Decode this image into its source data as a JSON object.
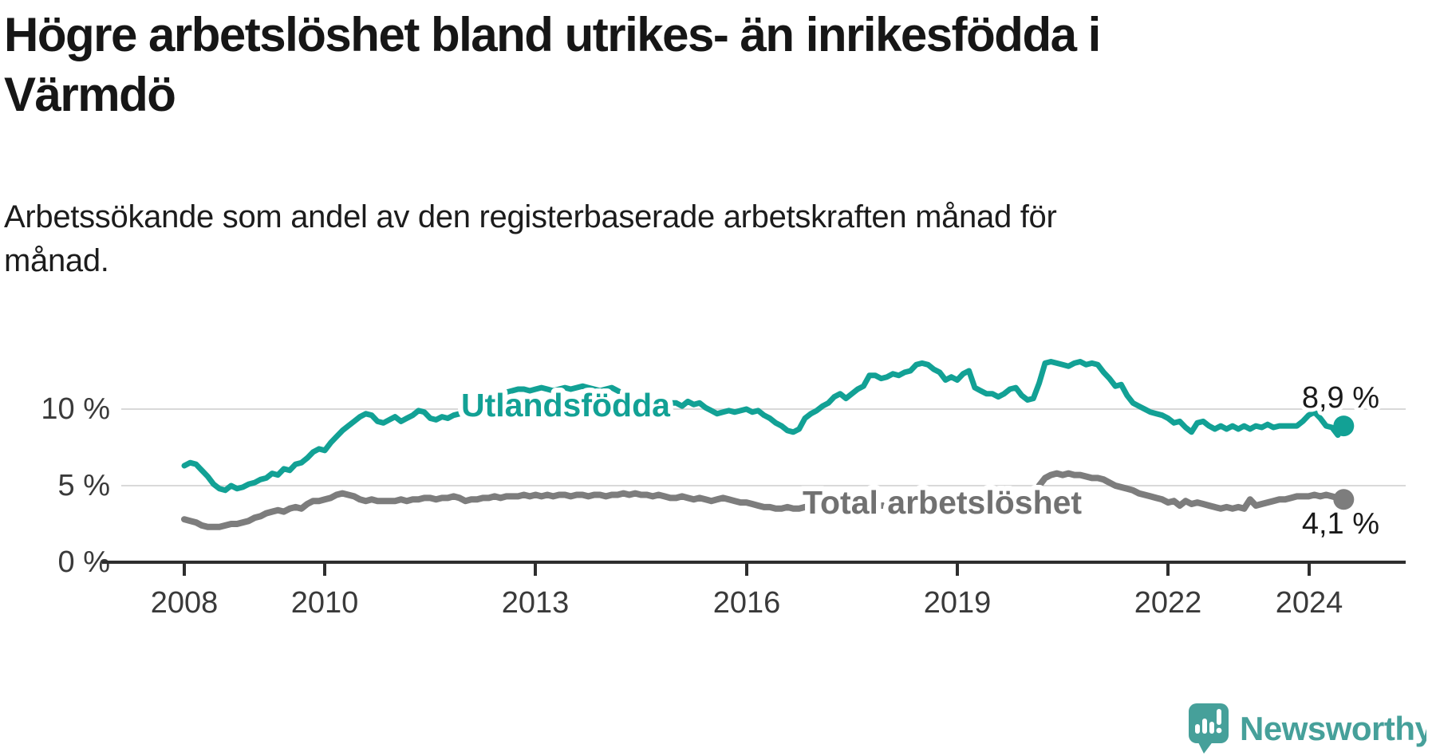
{
  "header": {
    "title_lines": [
      "Högre arbetslöshet bland utrikes- än inrikesfödda i",
      "Värmdö"
    ],
    "subtitle_lines": [
      "Arbetssökande som andel av den registerbaserade arbetskraften månad för",
      "månad."
    ]
  },
  "chart_data": {
    "type": "line",
    "unit": "percent",
    "frequency": "monthly",
    "x_start": "2008-01",
    "x_end": "2024-07",
    "grid": "horizontal",
    "ylim": [
      0,
      14
    ],
    "x_tick_labels": [
      "2008",
      "2010",
      "2013",
      "2016",
      "2019",
      "2022",
      "2024"
    ],
    "x_tick_years": [
      2008,
      2010,
      2013,
      2016,
      2019,
      2022,
      2024
    ],
    "y_tick_labels": [
      "0 %",
      "5 %",
      "10 %"
    ],
    "y_tick_values": [
      0,
      5,
      10
    ],
    "series": [
      {
        "name": "Utlandsfödda",
        "color": "#12a195",
        "end_label": "8,9 %",
        "end_value": 8.9,
        "values": [
          6.3,
          6.5,
          6.4,
          6.0,
          5.6,
          5.1,
          4.8,
          4.7,
          5.0,
          4.8,
          4.9,
          5.1,
          5.2,
          5.4,
          5.5,
          5.8,
          5.7,
          6.1,
          6.0,
          6.4,
          6.5,
          6.8,
          7.2,
          7.4,
          7.3,
          7.8,
          8.2,
          8.6,
          8.9,
          9.2,
          9.5,
          9.7,
          9.6,
          9.2,
          9.1,
          9.3,
          9.5,
          9.2,
          9.4,
          9.6,
          9.9,
          9.8,
          9.4,
          9.3,
          9.5,
          9.4,
          9.6,
          9.7,
          9.8,
          10.0,
          10.3,
          10.5,
          10.7,
          10.9,
          11.0,
          11.1,
          11.2,
          11.3,
          11.3,
          11.2,
          11.3,
          11.4,
          11.3,
          11.2,
          11.3,
          11.4,
          11.3,
          11.4,
          11.5,
          11.4,
          11.3,
          11.2,
          11.3,
          11.4,
          11.2,
          11.0,
          10.8,
          10.6,
          10.5,
          10.4,
          10.3,
          10.2,
          10.3,
          10.4,
          10.4,
          10.2,
          10.5,
          10.3,
          10.4,
          10.1,
          9.9,
          9.7,
          9.8,
          9.9,
          9.8,
          9.9,
          10.0,
          9.8,
          9.9,
          9.6,
          9.4,
          9.1,
          8.9,
          8.6,
          8.5,
          8.7,
          9.4,
          9.7,
          9.9,
          10.2,
          10.4,
          10.8,
          11.0,
          10.7,
          11.0,
          11.3,
          11.5,
          12.2,
          12.2,
          12.0,
          12.1,
          12.3,
          12.2,
          12.4,
          12.5,
          12.9,
          13.0,
          12.9,
          12.6,
          12.4,
          11.9,
          12.1,
          11.9,
          12.3,
          12.5,
          11.4,
          11.2,
          11.0,
          11.0,
          10.8,
          11.0,
          11.3,
          11.4,
          10.9,
          10.6,
          10.7,
          11.7,
          13.0,
          13.1,
          13.0,
          12.9,
          12.8,
          13.0,
          13.1,
          12.9,
          13.0,
          12.9,
          12.4,
          12.0,
          11.5,
          11.6,
          10.9,
          10.4,
          10.2,
          10.0,
          9.8,
          9.7,
          9.6,
          9.4,
          9.1,
          9.2,
          8.8,
          8.5,
          9.1,
          9.2,
          8.9,
          8.7,
          8.9,
          8.7,
          8.9,
          8.7,
          8.9,
          8.7,
          8.9,
          8.8,
          9.0,
          8.8,
          8.9,
          8.9,
          8.9,
          8.9,
          9.2,
          9.6,
          9.8,
          9.4,
          8.9,
          8.8,
          8.3,
          8.9
        ]
      },
      {
        "name": "Total arbetslöshet",
        "color": "#7d7d7d",
        "end_label": "4,1 %",
        "end_value": 4.1,
        "values": [
          2.8,
          2.7,
          2.6,
          2.4,
          2.3,
          2.3,
          2.3,
          2.4,
          2.5,
          2.5,
          2.6,
          2.7,
          2.9,
          3.0,
          3.2,
          3.3,
          3.4,
          3.3,
          3.5,
          3.6,
          3.5,
          3.8,
          4.0,
          4.0,
          4.1,
          4.2,
          4.4,
          4.5,
          4.4,
          4.3,
          4.1,
          4.0,
          4.1,
          4.0,
          4.0,
          4.0,
          4.0,
          4.1,
          4.0,
          4.1,
          4.1,
          4.2,
          4.2,
          4.1,
          4.2,
          4.2,
          4.3,
          4.2,
          4.0,
          4.1,
          4.1,
          4.2,
          4.2,
          4.3,
          4.2,
          4.3,
          4.3,
          4.3,
          4.4,
          4.3,
          4.4,
          4.3,
          4.4,
          4.3,
          4.4,
          4.4,
          4.3,
          4.4,
          4.4,
          4.3,
          4.4,
          4.4,
          4.3,
          4.4,
          4.4,
          4.5,
          4.4,
          4.5,
          4.4,
          4.4,
          4.3,
          4.4,
          4.3,
          4.2,
          4.2,
          4.3,
          4.2,
          4.1,
          4.2,
          4.1,
          4.0,
          4.1,
          4.2,
          4.1,
          4.0,
          3.9,
          3.9,
          3.8,
          3.7,
          3.6,
          3.6,
          3.5,
          3.5,
          3.6,
          3.5,
          3.5,
          3.6,
          3.6,
          3.6,
          3.5,
          3.6,
          3.6,
          3.5,
          3.6,
          3.6,
          3.7,
          3.7,
          3.6,
          3.7,
          3.7,
          3.7,
          3.8,
          3.7,
          3.8,
          3.7,
          3.8,
          3.8,
          3.7,
          3.8,
          3.8,
          3.9,
          3.8,
          3.8,
          3.9,
          3.8,
          3.9,
          3.9,
          4.0,
          3.9,
          4.0,
          4.0,
          3.9,
          4.0,
          4.0,
          4.1,
          4.3,
          5.0,
          5.5,
          5.7,
          5.8,
          5.7,
          5.8,
          5.7,
          5.7,
          5.6,
          5.5,
          5.5,
          5.4,
          5.2,
          5.0,
          4.9,
          4.8,
          4.7,
          4.5,
          4.4,
          4.3,
          4.2,
          4.1,
          3.9,
          4.0,
          3.7,
          4.0,
          3.8,
          3.9,
          3.8,
          3.7,
          3.6,
          3.5,
          3.6,
          3.5,
          3.6,
          3.5,
          4.1,
          3.7,
          3.8,
          3.9,
          4.0,
          4.1,
          4.1,
          4.2,
          4.3,
          4.3,
          4.3,
          4.4,
          4.3,
          4.4,
          4.3,
          4.2,
          4.1
        ]
      }
    ]
  },
  "branding": {
    "logo_text": "Newsworthy",
    "logo_color": "#46a09a",
    "logo_icon": "speech-bubble-bar-chart-exclamation"
  }
}
